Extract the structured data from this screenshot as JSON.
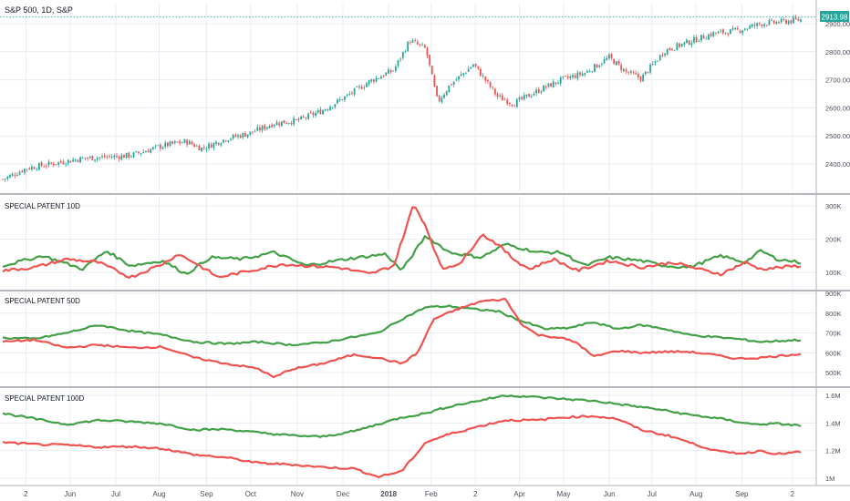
{
  "header": {
    "title": "S&P 500, 1D, S&P"
  },
  "last_price": {
    "value": "2913.98",
    "color": "#26a69a"
  },
  "colors": {
    "up": "#26a69a",
    "down": "#ef5350",
    "green_line": "#43a047",
    "red_line": "#ef5350",
    "grid": "#e9ecf2",
    "divider": "#6b6f7a",
    "axis_text": "#4a4e59"
  },
  "x_axis": {
    "labels": [
      "2",
      "Jun",
      "Jul",
      "Aug",
      "Sep",
      "Oct",
      "Nov",
      "Dec",
      "2018",
      "Feb",
      "2",
      "Apr",
      "May",
      "Jun",
      "Jul",
      "Aug",
      "Sep",
      "2"
    ]
  },
  "chart_data": [
    {
      "type": "candlestick",
      "title": "S&P 500, 1D, S&P",
      "y_ticks": [
        "2900.00",
        "2800.00",
        "2700.00",
        "2600.00",
        "2500.00",
        "2400.00"
      ],
      "ylim": [
        2330,
        2940
      ],
      "close_path": [
        [
          0,
          2345
        ],
        [
          0.03,
          2385
        ],
        [
          0.06,
          2400
        ],
        [
          0.1,
          2420
        ],
        [
          0.13,
          2425
        ],
        [
          0.16,
          2430
        ],
        [
          0.2,
          2465
        ],
        [
          0.23,
          2480
        ],
        [
          0.25,
          2455
        ],
        [
          0.28,
          2490
        ],
        [
          0.31,
          2510
        ],
        [
          0.34,
          2545
        ],
        [
          0.37,
          2555
        ],
        [
          0.4,
          2590
        ],
        [
          0.43,
          2640
        ],
        [
          0.46,
          2695
        ],
        [
          0.49,
          2735
        ],
        [
          0.51,
          2840
        ],
        [
          0.53,
          2810
        ],
        [
          0.545,
          2620
        ],
        [
          0.56,
          2680
        ],
        [
          0.59,
          2755
        ],
        [
          0.62,
          2640
        ],
        [
          0.64,
          2615
        ],
        [
          0.67,
          2660
        ],
        [
          0.7,
          2700
        ],
        [
          0.73,
          2725
        ],
        [
          0.76,
          2780
        ],
        [
          0.78,
          2730
        ],
        [
          0.8,
          2705
        ],
        [
          0.83,
          2805
        ],
        [
          0.86,
          2835
        ],
        [
          0.89,
          2865
        ],
        [
          0.92,
          2875
        ],
        [
          0.95,
          2900
        ],
        [
          0.97,
          2905
        ],
        [
          1.0,
          2914
        ]
      ]
    },
    {
      "type": "line",
      "title": "SPECIAL PATENT 10D",
      "y_ticks": [
        "300K",
        "200K",
        "100K"
      ],
      "ylim": [
        60000,
        330000
      ],
      "series": [
        {
          "color": "green",
          "path": [
            [
              0,
              120000
            ],
            [
              0.05,
              150000
            ],
            [
              0.1,
              110000
            ],
            [
              0.13,
              165000
            ],
            [
              0.16,
              120000
            ],
            [
              0.2,
              135000
            ],
            [
              0.23,
              95000
            ],
            [
              0.26,
              145000
            ],
            [
              0.3,
              140000
            ],
            [
              0.34,
              160000
            ],
            [
              0.38,
              120000
            ],
            [
              0.43,
              140000
            ],
            [
              0.48,
              155000
            ],
            [
              0.5,
              105000
            ],
            [
              0.53,
              210000
            ],
            [
              0.56,
              160000
            ],
            [
              0.6,
              145000
            ],
            [
              0.63,
              185000
            ],
            [
              0.67,
              160000
            ],
            [
              0.7,
              160000
            ],
            [
              0.73,
              120000
            ],
            [
              0.76,
              145000
            ],
            [
              0.8,
              135000
            ],
            [
              0.83,
              120000
            ],
            [
              0.86,
              115000
            ],
            [
              0.9,
              150000
            ],
            [
              0.93,
              130000
            ],
            [
              0.95,
              165000
            ],
            [
              0.97,
              140000
            ],
            [
              1.0,
              130000
            ]
          ]
        },
        {
          "color": "red",
          "path": [
            [
              0,
              105000
            ],
            [
              0.04,
              115000
            ],
            [
              0.08,
              140000
            ],
            [
              0.12,
              130000
            ],
            [
              0.16,
              85000
            ],
            [
              0.2,
              125000
            ],
            [
              0.22,
              155000
            ],
            [
              0.24,
              130000
            ],
            [
              0.27,
              85000
            ],
            [
              0.31,
              105000
            ],
            [
              0.35,
              125000
            ],
            [
              0.38,
              120000
            ],
            [
              0.42,
              115000
            ],
            [
              0.46,
              95000
            ],
            [
              0.49,
              120000
            ],
            [
              0.515,
              305000
            ],
            [
              0.53,
              240000
            ],
            [
              0.55,
              110000
            ],
            [
              0.575,
              130000
            ],
            [
              0.6,
              215000
            ],
            [
              0.62,
              185000
            ],
            [
              0.64,
              140000
            ],
            [
              0.66,
              110000
            ],
            [
              0.69,
              140000
            ],
            [
              0.72,
              105000
            ],
            [
              0.76,
              135000
            ],
            [
              0.8,
              115000
            ],
            [
              0.84,
              130000
            ],
            [
              0.88,
              105000
            ],
            [
              0.9,
              95000
            ],
            [
              0.93,
              130000
            ],
            [
              0.95,
              110000
            ],
            [
              1.0,
              120000
            ]
          ]
        }
      ]
    },
    {
      "type": "line",
      "title": "SPECIAL PATENT 50D",
      "y_ticks": [
        "900K",
        "800K",
        "700K",
        "600K",
        "500K"
      ],
      "ylim": [
        455000,
        910000
      ],
      "series": [
        {
          "color": "green",
          "path": [
            [
              0,
              675000
            ],
            [
              0.04,
              670000
            ],
            [
              0.08,
              700000
            ],
            [
              0.12,
              740000
            ],
            [
              0.16,
              710000
            ],
            [
              0.2,
              690000
            ],
            [
              0.24,
              655000
            ],
            [
              0.28,
              645000
            ],
            [
              0.32,
              655000
            ],
            [
              0.36,
              640000
            ],
            [
              0.4,
              650000
            ],
            [
              0.44,
              680000
            ],
            [
              0.47,
              700000
            ],
            [
              0.5,
              770000
            ],
            [
              0.53,
              830000
            ],
            [
              0.56,
              835000
            ],
            [
              0.59,
              820000
            ],
            [
              0.62,
              810000
            ],
            [
              0.65,
              760000
            ],
            [
              0.68,
              720000
            ],
            [
              0.71,
              725000
            ],
            [
              0.74,
              755000
            ],
            [
              0.77,
              720000
            ],
            [
              0.8,
              740000
            ],
            [
              0.83,
              720000
            ],
            [
              0.86,
              690000
            ],
            [
              0.89,
              680000
            ],
            [
              0.92,
              670000
            ],
            [
              0.95,
              655000
            ],
            [
              1.0,
              665000
            ]
          ]
        },
        {
          "color": "red",
          "path": [
            [
              0,
              655000
            ],
            [
              0.04,
              665000
            ],
            [
              0.08,
              625000
            ],
            [
              0.12,
              640000
            ],
            [
              0.16,
              625000
            ],
            [
              0.2,
              630000
            ],
            [
              0.24,
              575000
            ],
            [
              0.28,
              545000
            ],
            [
              0.32,
              520000
            ],
            [
              0.34,
              475000
            ],
            [
              0.36,
              515000
            ],
            [
              0.4,
              545000
            ],
            [
              0.44,
              590000
            ],
            [
              0.47,
              575000
            ],
            [
              0.5,
              545000
            ],
            [
              0.52,
              600000
            ],
            [
              0.54,
              770000
            ],
            [
              0.57,
              820000
            ],
            [
              0.6,
              860000
            ],
            [
              0.63,
              870000
            ],
            [
              0.65,
              745000
            ],
            [
              0.67,
              690000
            ],
            [
              0.7,
              675000
            ],
            [
              0.72,
              650000
            ],
            [
              0.74,
              580000
            ],
            [
              0.77,
              610000
            ],
            [
              0.8,
              600000
            ],
            [
              0.83,
              605000
            ],
            [
              0.86,
              605000
            ],
            [
              0.89,
              590000
            ],
            [
              0.92,
              570000
            ],
            [
              0.95,
              575000
            ],
            [
              1.0,
              595000
            ]
          ]
        }
      ]
    },
    {
      "type": "line",
      "title": "SPECIAL PATENT 100D",
      "y_ticks": [
        "1.6M",
        "1.4M",
        "1.2M",
        "1M"
      ],
      "ylim": [
        950000,
        1640000
      ],
      "series": [
        {
          "color": "green",
          "path": [
            [
              0,
              1470000
            ],
            [
              0.04,
              1430000
            ],
            [
              0.08,
              1390000
            ],
            [
              0.12,
              1420000
            ],
            [
              0.16,
              1410000
            ],
            [
              0.2,
              1395000
            ],
            [
              0.24,
              1350000
            ],
            [
              0.28,
              1355000
            ],
            [
              0.32,
              1330000
            ],
            [
              0.36,
              1310000
            ],
            [
              0.4,
              1300000
            ],
            [
              0.44,
              1340000
            ],
            [
              0.47,
              1390000
            ],
            [
              0.5,
              1440000
            ],
            [
              0.53,
              1470000
            ],
            [
              0.56,
              1520000
            ],
            [
              0.6,
              1565000
            ],
            [
              0.63,
              1600000
            ],
            [
              0.66,
              1590000
            ],
            [
              0.7,
              1575000
            ],
            [
              0.74,
              1560000
            ],
            [
              0.78,
              1530000
            ],
            [
              0.82,
              1500000
            ],
            [
              0.86,
              1460000
            ],
            [
              0.9,
              1430000
            ],
            [
              0.94,
              1390000
            ],
            [
              0.97,
              1395000
            ],
            [
              1.0,
              1380000
            ]
          ]
        },
        {
          "color": "red",
          "path": [
            [
              0,
              1260000
            ],
            [
              0.04,
              1245000
            ],
            [
              0.08,
              1240000
            ],
            [
              0.12,
              1225000
            ],
            [
              0.16,
              1230000
            ],
            [
              0.2,
              1215000
            ],
            [
              0.24,
              1170000
            ],
            [
              0.28,
              1150000
            ],
            [
              0.32,
              1110000
            ],
            [
              0.36,
              1100000
            ],
            [
              0.4,
              1080000
            ],
            [
              0.44,
              1070000
            ],
            [
              0.47,
              1010000
            ],
            [
              0.5,
              1050000
            ],
            [
              0.53,
              1260000
            ],
            [
              0.56,
              1320000
            ],
            [
              0.6,
              1380000
            ],
            [
              0.63,
              1420000
            ],
            [
              0.67,
              1420000
            ],
            [
              0.7,
              1440000
            ],
            [
              0.74,
              1450000
            ],
            [
              0.77,
              1430000
            ],
            [
              0.8,
              1350000
            ],
            [
              0.84,
              1300000
            ],
            [
              0.87,
              1240000
            ],
            [
              0.9,
              1190000
            ],
            [
              0.93,
              1180000
            ],
            [
              0.95,
              1200000
            ],
            [
              0.97,
              1175000
            ],
            [
              1.0,
              1190000
            ]
          ]
        }
      ]
    }
  ]
}
